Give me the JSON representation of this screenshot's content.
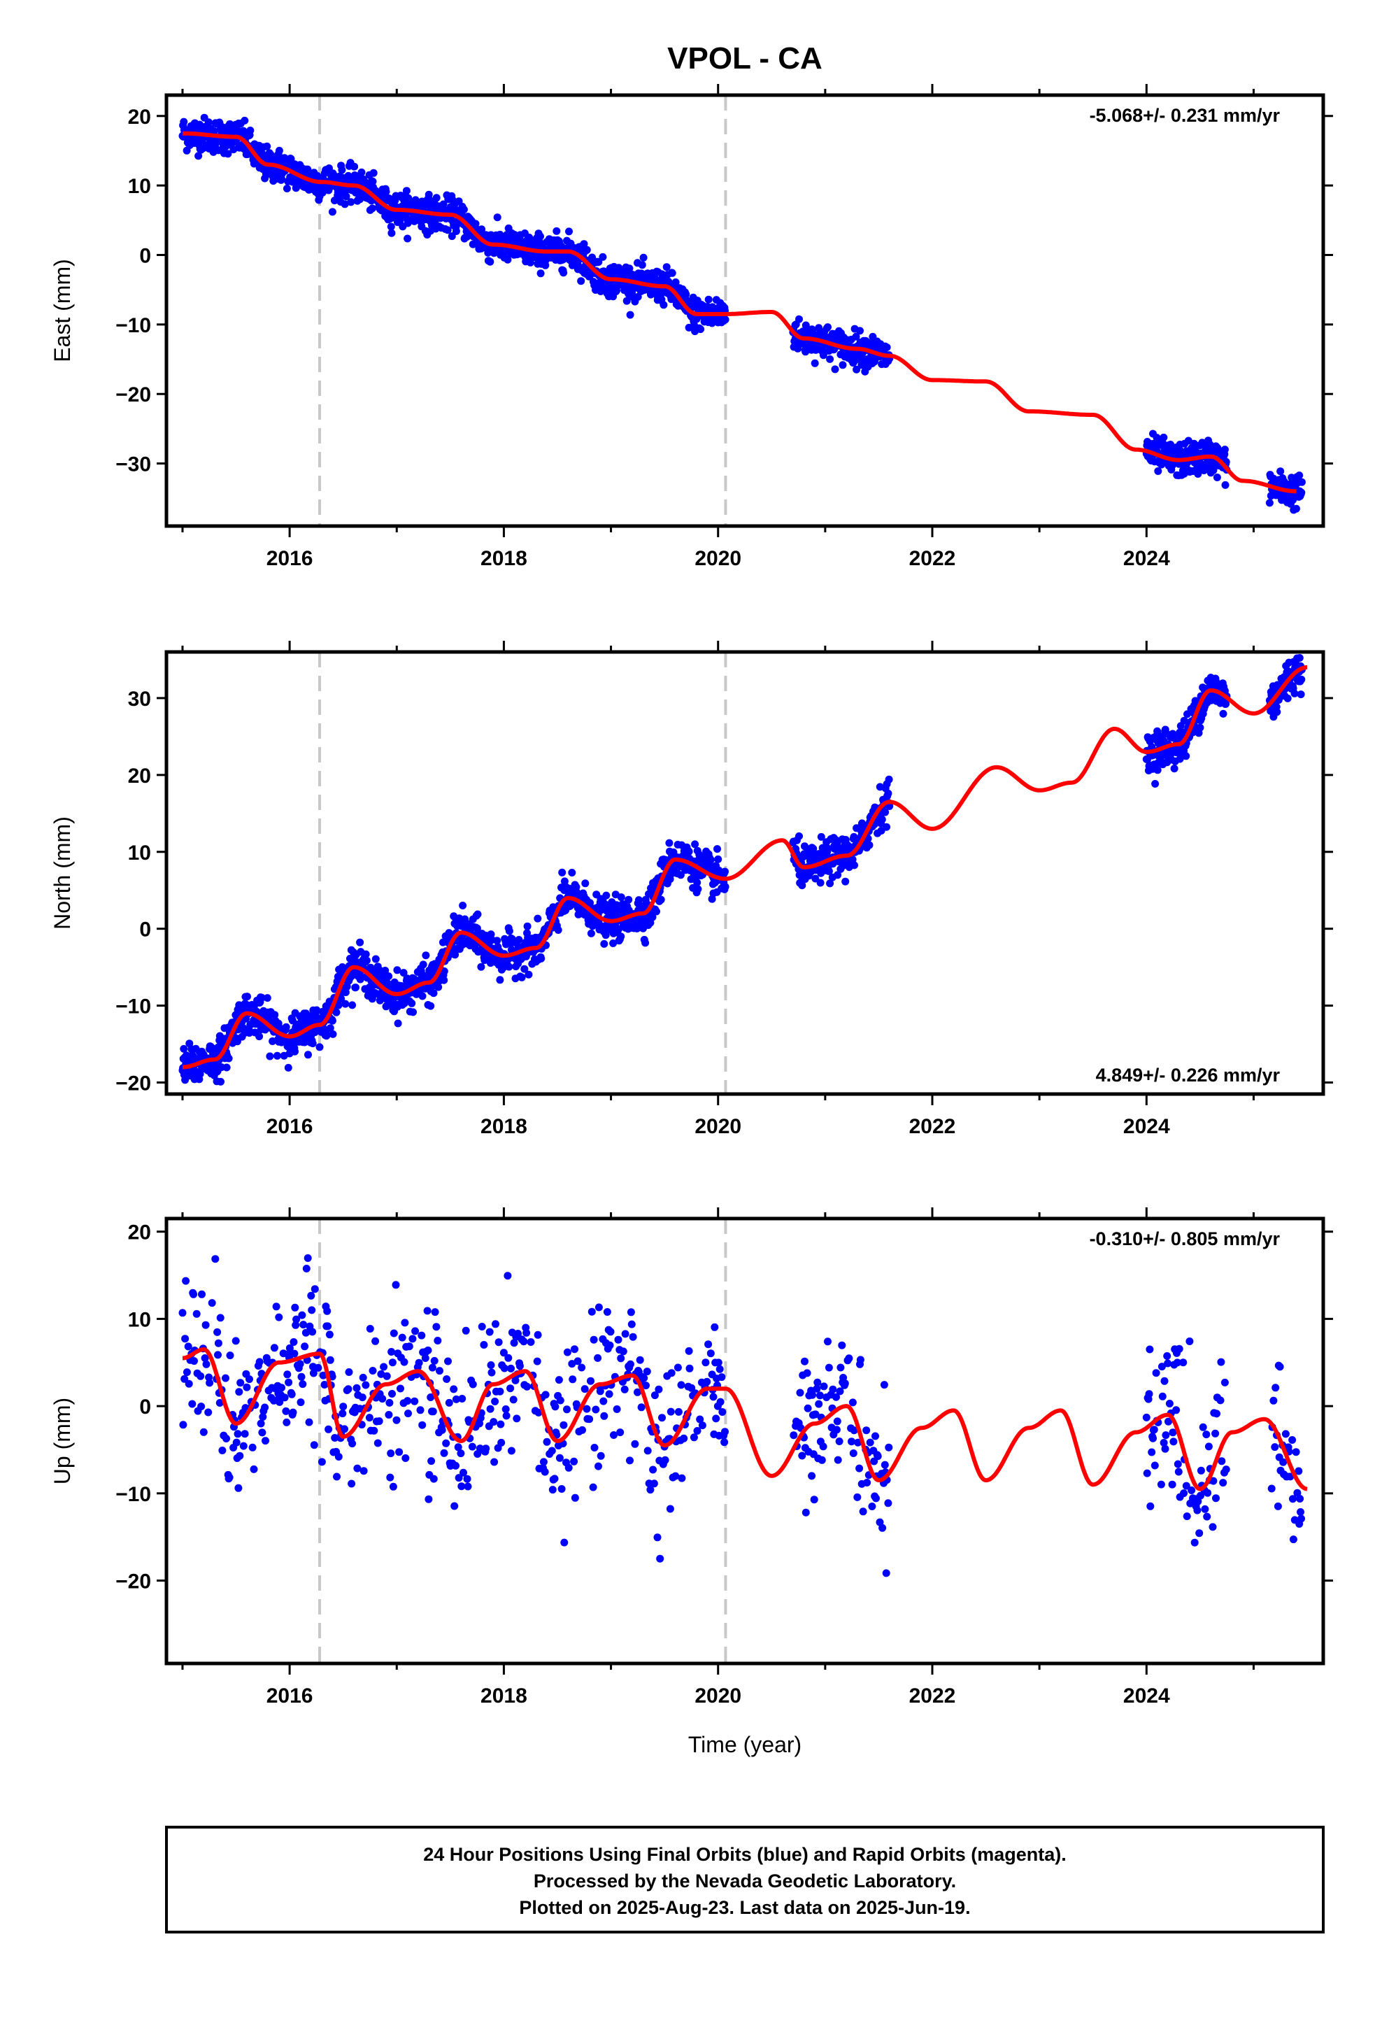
{
  "title": "VPOL - CA",
  "xlabel": "Time (year)",
  "x_ticks": [
    "2016",
    "2018",
    "2020",
    "2022",
    "2024"
  ],
  "x_range": [
    2014.85,
    2025.65
  ],
  "breaks": [
    2016.28,
    2020.07
  ],
  "colors": {
    "data": "#0000ff",
    "model": "#ff0000",
    "breaks": "#c8c8c8",
    "frame": "#000000"
  },
  "footer": {
    "line1": "24 Hour Positions Using Final Orbits (blue) and Rapid Orbits (magenta).",
    "line2": "Processed by the Nevada Geodetic Laboratory.",
    "line3": "Plotted on 2025-Aug-23. Last data on 2025-Jun-19."
  },
  "chart_data": [
    {
      "type": "scatter",
      "panel": "east",
      "ylabel": "East (mm)",
      "ylim": [
        -39,
        23
      ],
      "y_ticks": [
        20,
        10,
        0,
        -10,
        -20,
        -30
      ],
      "rate": "-5.068+/- 0.231 mm/yr",
      "rate_position": "top-right",
      "model_x": [
        2015.0,
        2015.5,
        2015.8,
        2016.3,
        2016.6,
        2017.0,
        2017.5,
        2017.9,
        2018.4,
        2018.6,
        2019.0,
        2019.5,
        2019.8,
        2020.07,
        2020.5,
        2020.8,
        2021.3,
        2021.6,
        2022.0,
        2022.5,
        2022.9,
        2023.5,
        2023.9,
        2024.3,
        2024.6,
        2024.9,
        2025.4
      ],
      "model_y": [
        17.5,
        17.0,
        13.0,
        10.5,
        10.0,
        6.5,
        5.8,
        1.5,
        0.5,
        0.5,
        -3.5,
        -4.5,
        -8.5,
        -8.5,
        -8.2,
        -12.0,
        -13.5,
        -14.5,
        -18.0,
        -18.2,
        -22.5,
        -23.0,
        -28.0,
        -29.5,
        -29.0,
        -32.5,
        -34.0
      ],
      "data_segments": [
        [
          2015.0,
          2020.07
        ],
        [
          2020.7,
          2021.6
        ],
        [
          2024.0,
          2024.75
        ],
        [
          2025.15,
          2025.45
        ]
      ],
      "scatter_sigma": 1.2
    },
    {
      "type": "scatter",
      "panel": "north",
      "ylabel": "North (mm)",
      "ylim": [
        -21.5,
        36
      ],
      "y_ticks": [
        30,
        20,
        10,
        0,
        -10,
        -20
      ],
      "rate": "4.849+/- 0.226 mm/yr",
      "rate_position": "bottom-right",
      "model_x": [
        2015.0,
        2015.3,
        2015.6,
        2016.0,
        2016.28,
        2016.6,
        2017.0,
        2017.3,
        2017.6,
        2018.0,
        2018.3,
        2018.6,
        2019.0,
        2019.3,
        2019.6,
        2020.07,
        2020.6,
        2020.8,
        2021.2,
        2021.6,
        2022.0,
        2022.6,
        2023.0,
        2023.3,
        2023.7,
        2024.0,
        2024.3,
        2024.6,
        2025.0,
        2025.5
      ],
      "model_y": [
        -18.0,
        -17.0,
        -11.0,
        -14.0,
        -12.5,
        -5.0,
        -8.5,
        -7.0,
        -0.5,
        -3.5,
        -2.5,
        4.0,
        1.0,
        2.0,
        9.0,
        6.5,
        11.5,
        8.0,
        9.5,
        16.5,
        13.0,
        21.0,
        18.0,
        19.0,
        26.0,
        23.0,
        24.0,
        31.0,
        28.0,
        34.0
      ],
      "data_segments": [
        [
          2015.0,
          2020.07
        ],
        [
          2020.7,
          2021.6
        ],
        [
          2024.0,
          2024.75
        ],
        [
          2025.15,
          2025.45
        ]
      ],
      "scatter_sigma": 1.3
    },
    {
      "type": "scatter",
      "panel": "up",
      "ylabel": "Up (mm)",
      "ylim": [
        -29.5,
        21.5
      ],
      "y_ticks": [
        20,
        10,
        0,
        -10,
        -20
      ],
      "rate": "-0.310+/- 0.805 mm/yr",
      "rate_position": "top-right",
      "model_x": [
        2015.0,
        2015.2,
        2015.5,
        2015.9,
        2016.28,
        2016.5,
        2016.9,
        2017.2,
        2017.6,
        2017.9,
        2018.2,
        2018.5,
        2018.9,
        2019.2,
        2019.5,
        2019.9,
        2020.07,
        2020.5,
        2020.9,
        2021.2,
        2021.5,
        2021.9,
        2022.2,
        2022.5,
        2022.9,
        2023.2,
        2023.5,
        2023.9,
        2024.2,
        2024.5,
        2024.8,
        2025.1,
        2025.5
      ],
      "model_y": [
        5.5,
        6.5,
        -2.0,
        5.0,
        6.0,
        -3.5,
        2.5,
        4.0,
        -4.0,
        2.5,
        4.0,
        -4.0,
        2.5,
        3.5,
        -4.5,
        2.0,
        2.0,
        -8.0,
        -2.0,
        0.0,
        -8.5,
        -2.5,
        -0.5,
        -8.5,
        -2.5,
        -0.5,
        -9.0,
        -3.0,
        -1.0,
        -9.5,
        -3.0,
        -1.5,
        -9.5
      ],
      "data_segments": [
        [
          2015.0,
          2020.07
        ],
        [
          2020.7,
          2021.6
        ],
        [
          2024.0,
          2024.75
        ],
        [
          2025.15,
          2025.45
        ]
      ],
      "scatter_sigma": 4.5
    }
  ]
}
